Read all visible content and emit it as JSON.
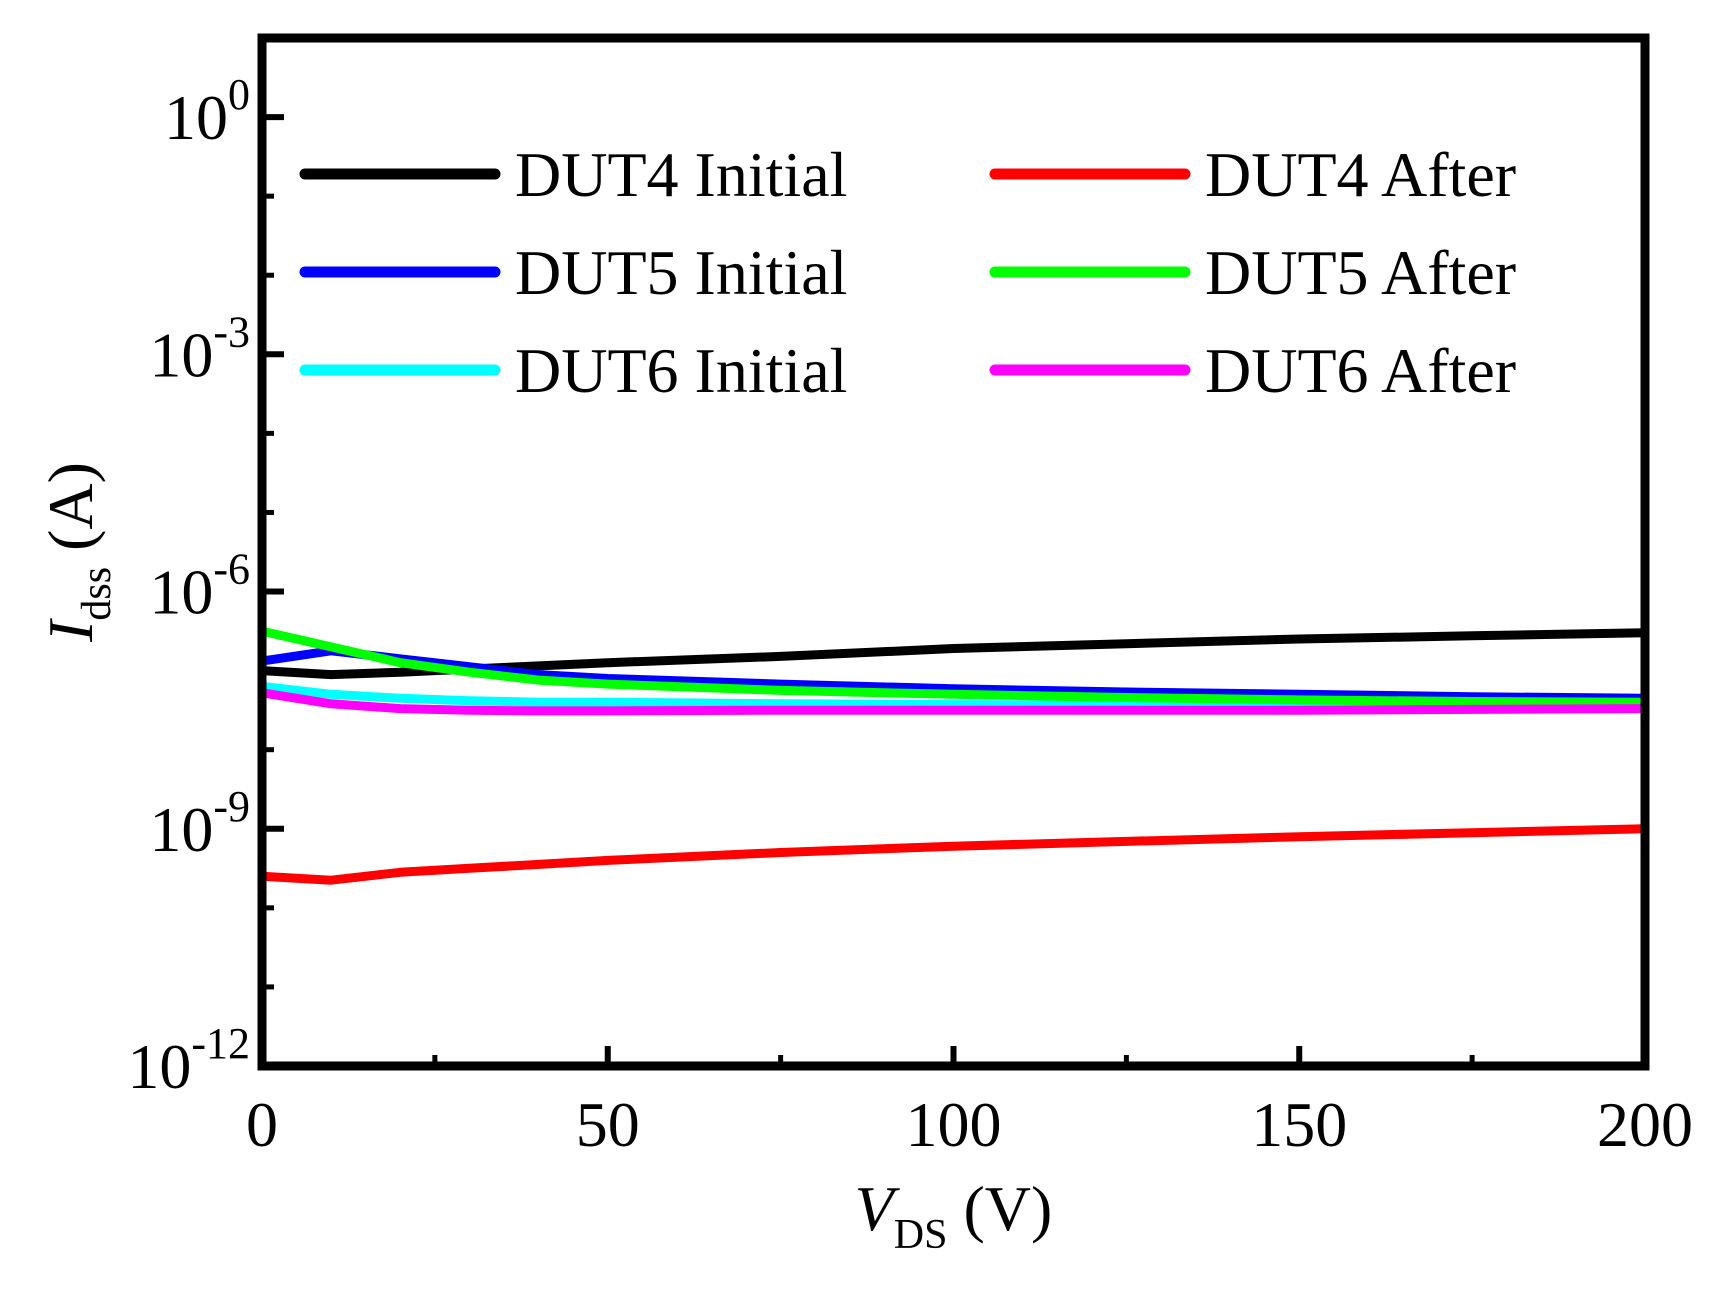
{
  "chart_data": {
    "type": "line",
    "title": "",
    "xlabel": {
      "main": "V",
      "sub": "DS",
      "unit": "(V)"
    },
    "ylabel": {
      "main": "I",
      "sub": "dss",
      "unit": "(A)"
    },
    "xlim": [
      0,
      200
    ],
    "ylim_exp": [
      -12,
      1
    ],
    "yscale": "log",
    "x_ticks": [
      {
        "value": 0,
        "label": "0"
      },
      {
        "value": 50,
        "label": "50"
      },
      {
        "value": 100,
        "label": "100"
      },
      {
        "value": 150,
        "label": "150"
      },
      {
        "value": 200,
        "label": "200"
      }
    ],
    "y_ticks": [
      {
        "exp": 0,
        "base": "10",
        "sup": "0"
      },
      {
        "exp": -3,
        "base": "10",
        "sup": "-3"
      },
      {
        "exp": -6,
        "base": "10",
        "sup": "-6"
      },
      {
        "exp": -9,
        "base": "10",
        "sup": "-9"
      },
      {
        "exp": -12,
        "base": "10",
        "sup": "-12"
      }
    ],
    "x_minor_step": 25,
    "y_minor_step": 1,
    "grid": false,
    "legend_position": "top",
    "x": [
      0,
      10,
      20,
      30,
      40,
      50,
      75,
      100,
      125,
      150,
      175,
      200
    ],
    "series": [
      {
        "name": "DUT4 Initial",
        "color": "#000000",
        "log10_values": [
          -7.0,
          -7.05,
          -7.02,
          -6.98,
          -6.94,
          -6.9,
          -6.82,
          -6.72,
          -6.66,
          -6.6,
          -6.56,
          -6.52
        ]
      },
      {
        "name": "DUT5 Initial",
        "color": "#0000ff",
        "log10_values": [
          -6.88,
          -6.75,
          -6.85,
          -6.95,
          -7.05,
          -7.1,
          -7.17,
          -7.23,
          -7.27,
          -7.3,
          -7.33,
          -7.35
        ]
      },
      {
        "name": "DUT6 Initial",
        "color": "#00ffff",
        "log10_values": [
          -7.2,
          -7.3,
          -7.35,
          -7.38,
          -7.4,
          -7.4,
          -7.42,
          -7.43,
          -7.44,
          -7.45,
          -7.45,
          -7.45
        ]
      },
      {
        "name": "DUT4 After",
        "color": "#ff0000",
        "log10_values": [
          -9.6,
          -9.65,
          -9.55,
          -9.5,
          -9.45,
          -9.4,
          -9.3,
          -9.22,
          -9.16,
          -9.1,
          -9.05,
          -9.0
        ]
      },
      {
        "name": "DUT5 After",
        "color": "#00ff00",
        "log10_values": [
          -6.5,
          -6.7,
          -6.9,
          -7.02,
          -7.12,
          -7.17,
          -7.25,
          -7.3,
          -7.34,
          -7.37,
          -7.39,
          -7.4
        ]
      },
      {
        "name": "DUT6 After",
        "color": "#ff00ff",
        "log10_values": [
          -7.28,
          -7.42,
          -7.48,
          -7.5,
          -7.51,
          -7.51,
          -7.5,
          -7.5,
          -7.5,
          -7.5,
          -7.49,
          -7.48
        ]
      }
    ]
  }
}
